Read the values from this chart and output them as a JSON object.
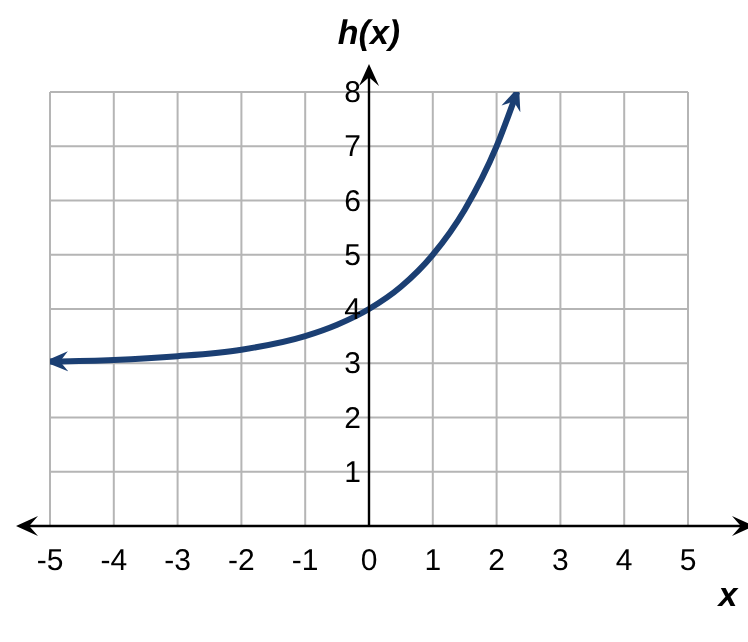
{
  "chart_data": {
    "type": "line",
    "xlabel": "x",
    "ylabel": "h(x)",
    "x": [
      -5,
      -4,
      -3,
      -2,
      -1,
      -0.5,
      0,
      0.5,
      1,
      1.5,
      2,
      2.32
    ],
    "series": [
      {
        "color": "#1b3f73",
        "values": [
          3.03,
          3.06,
          3.13,
          3.25,
          3.5,
          3.71,
          4,
          4.41,
          5,
          5.83,
          7,
          8
        ]
      }
    ],
    "xlim": [
      -5,
      5
    ],
    "xticks": [
      -5,
      -4,
      -3,
      -2,
      -1,
      0,
      1,
      2,
      3,
      4,
      5
    ],
    "ylim": [
      0,
      8
    ],
    "yticks": [
      {
        "value": 0,
        "label": null
      },
      1,
      2,
      3,
      4,
      5,
      6,
      7,
      8
    ],
    "grid": true,
    "marker": "none",
    "line_style": "solid"
  }
}
